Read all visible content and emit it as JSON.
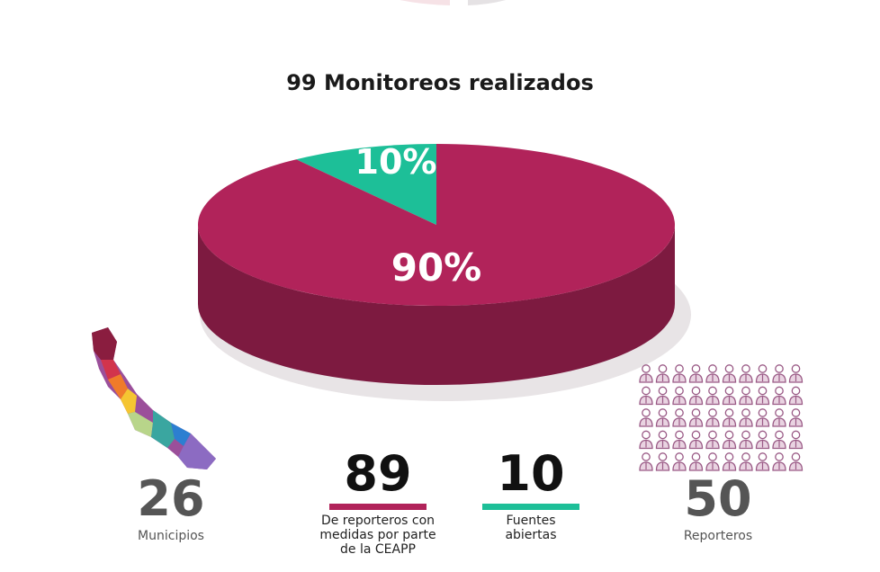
{
  "title": "99 Monitoreos realizados",
  "chart_data": {
    "type": "pie",
    "title": "99 Monitoreos realizados",
    "slices": [
      {
        "label": "10%",
        "value": 10,
        "color": "#1dbf98"
      },
      {
        "label": "90%",
        "value": 90,
        "color": "#b1235a"
      }
    ]
  },
  "stats": {
    "municipios": {
      "value": "26",
      "label": "Municipios"
    },
    "medidas": {
      "value": "89",
      "label": "De reporteros con medidas por parte de la CEAPP",
      "color": "#b1235a"
    },
    "fuentes": {
      "value": "10",
      "label": "Fuentes abiertas",
      "color": "#1dbf98"
    },
    "reporteros": {
      "value": "50",
      "label": "Reporteros",
      "icon_count": 50
    }
  },
  "icons": {
    "map": "veracruz-map-icon",
    "people": "reporter-person-icon"
  }
}
